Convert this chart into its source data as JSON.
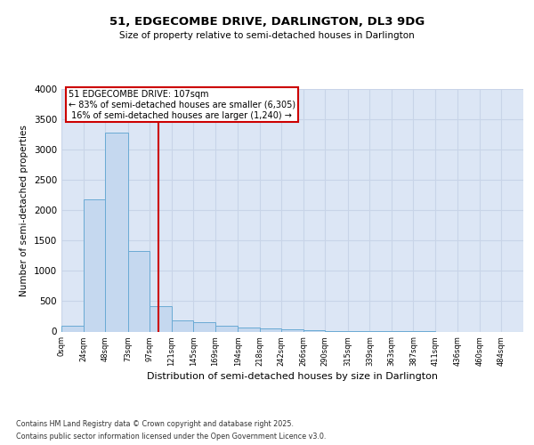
{
  "title1": "51, EDGECOMBE DRIVE, DARLINGTON, DL3 9DG",
  "title2": "Size of property relative to semi-detached houses in Darlington",
  "xlabel": "Distribution of semi-detached houses by size in Darlington",
  "ylabel": "Number of semi-detached properties",
  "property_size": 107,
  "property_label": "51 EDGECOMBE DRIVE: 107sqm",
  "pct_smaller": 83,
  "count_smaller": 6305,
  "pct_larger": 16,
  "count_larger": 1240,
  "bin_edges": [
    0,
    24,
    48,
    73,
    97,
    121,
    145,
    169,
    194,
    218,
    242,
    266,
    290,
    315,
    339,
    363,
    387,
    411,
    436,
    460,
    484,
    508
  ],
  "bar_heights": [
    100,
    2175,
    3280,
    1330,
    415,
    180,
    155,
    95,
    70,
    55,
    30,
    18,
    10,
    5,
    2,
    1,
    1,
    0,
    0,
    0,
    0
  ],
  "bar_color": "#c5d8ef",
  "bar_edge_color": "#6aaad4",
  "vline_color": "#cc0000",
  "annotation_box_color": "#cc0000",
  "grid_color": "#c8d4e8",
  "background_color": "#dce6f5",
  "tick_labels": [
    "0sqm",
    "24sqm",
    "48sqm",
    "73sqm",
    "97sqm",
    "121sqm",
    "145sqm",
    "169sqm",
    "194sqm",
    "218sqm",
    "242sqm",
    "266sqm",
    "290sqm",
    "315sqm",
    "339sqm",
    "363sqm",
    "387sqm",
    "411sqm",
    "436sqm",
    "460sqm",
    "484sqm"
  ],
  "ylim": [
    0,
    4000
  ],
  "yticks": [
    0,
    500,
    1000,
    1500,
    2000,
    2500,
    3000,
    3500,
    4000
  ],
  "footnote1": "Contains HM Land Registry data © Crown copyright and database right 2025.",
  "footnote2": "Contains public sector information licensed under the Open Government Licence v3.0."
}
